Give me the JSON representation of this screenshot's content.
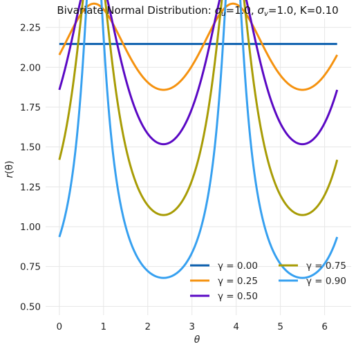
{
  "chart_data": {
    "type": "line",
    "title_prefix": "Bivariate Normal Distribution: ",
    "title_parts": [
      {
        "sym": "σ",
        "sub": "u",
        "val": "=1.0, "
      },
      {
        "sym": "σ",
        "sub": "v",
        "val": "=1.0, K=0.10"
      }
    ],
    "xlabel": "θ",
    "ylabel_sym": "r",
    "ylabel_arg": "(θ)",
    "xlim": [
      -0.31,
      6.6
    ],
    "ylim": [
      0.445,
      2.305
    ],
    "xticks": [
      0,
      1,
      2,
      3,
      4,
      5,
      6
    ],
    "yticks": [
      0.5,
      0.75,
      1.0,
      1.25,
      1.5,
      1.75,
      2.0,
      2.25
    ],
    "ytick_labels": [
      "0.50",
      "0.75",
      "1.00",
      "1.25",
      "1.50",
      "1.75",
      "2.00",
      "2.25"
    ],
    "grid": true,
    "legend": {
      "placement": "lower-right",
      "columns": 2
    },
    "theta_range": [
      0,
      6.283
    ],
    "series": [
      {
        "name": "γ = 0.00",
        "color": "#0b5fae",
        "gamma": 0.0,
        "K": 0.1
      },
      {
        "name": "γ = 0.25",
        "color": "#f5920f",
        "gamma": 0.25,
        "K": 0.1
      },
      {
        "name": "γ = 0.50",
        "color": "#5a08c4",
        "gamma": 0.5,
        "K": 0.1
      },
      {
        "name": "γ = 0.75",
        "color": "#a89c05",
        "gamma": 0.75,
        "K": 0.1
      },
      {
        "name": "γ = 0.90",
        "color": "#36a0f0",
        "gamma": 0.9,
        "K": 0.1
      }
    ]
  }
}
